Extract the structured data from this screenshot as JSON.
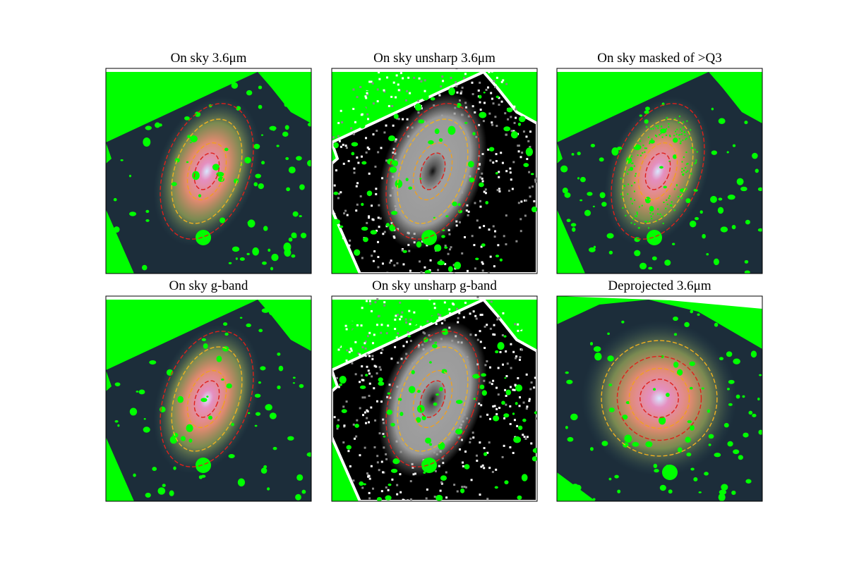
{
  "panels": [
    {
      "title": "On sky 3.6μm"
    },
    {
      "title": "On sky unsharp 3.6μm"
    },
    {
      "title": "On sky masked of >Q3"
    },
    {
      "title": "On sky g-band"
    },
    {
      "title": "On sky unsharp g-band"
    },
    {
      "title": "Deprojected 3.6μm"
    }
  ]
}
